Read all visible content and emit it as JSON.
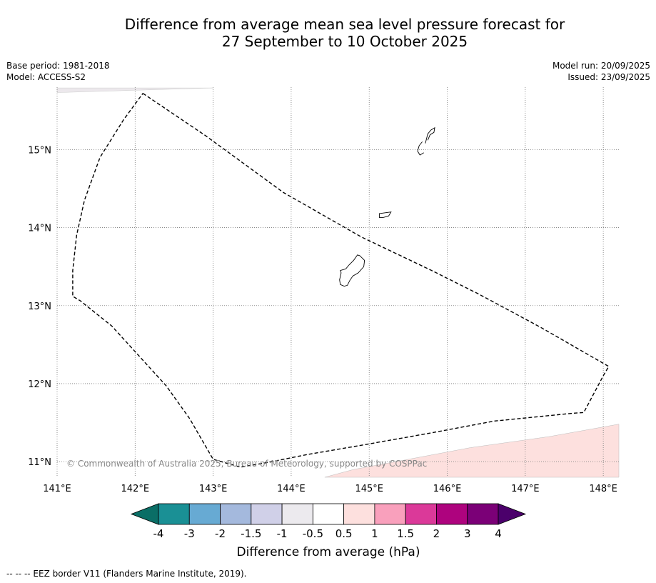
{
  "title": {
    "line1": "Difference from average mean sea level pressure forecast for",
    "line2": "27 September to 10 October 2025"
  },
  "meta": {
    "base_period": "Base period: 1981-2018",
    "model": "Model: ACCESS-S2",
    "model_run": "Model run: 20/09/2025",
    "issued": "Issued: 23/09/2025"
  },
  "map": {
    "longitude_range": [
      141.0,
      148.2
    ],
    "latitude_range": [
      10.8,
      15.8
    ],
    "lon_ticks": [
      141,
      142,
      143,
      144,
      145,
      146,
      147,
      148
    ],
    "lon_labels": [
      "141°E",
      "142°E",
      "143°E",
      "144°E",
      "145°E",
      "146°E",
      "147°E",
      "148°E"
    ],
    "lat_ticks": [
      15,
      14,
      13,
      12,
      11
    ],
    "lat_labels": [
      "15°N",
      "14°N",
      "13°N",
      "12°N",
      "11°N"
    ],
    "copyright": "© Commonwealth of Australia 2025, Bureau of Meteorology, supported by COSPPac",
    "eez_border": [
      [
        142.1,
        15.72
      ],
      [
        142.9,
        15.18
      ],
      [
        143.9,
        14.45
      ],
      [
        144.9,
        13.88
      ],
      [
        145.8,
        13.45
      ],
      [
        146.4,
        13.15
      ],
      [
        147.2,
        12.72
      ],
      [
        148.07,
        12.22
      ],
      [
        148.0,
        12.1
      ],
      [
        147.75,
        11.63
      ],
      [
        147.6,
        11.62
      ],
      [
        146.6,
        11.52
      ],
      [
        145.8,
        11.37
      ],
      [
        144.9,
        11.21
      ],
      [
        144.2,
        11.09
      ],
      [
        143.7,
        10.99
      ],
      [
        143.35,
        10.93
      ],
      [
        143.0,
        11.03
      ],
      [
        142.7,
        11.55
      ],
      [
        142.4,
        11.97
      ],
      [
        142.0,
        12.41
      ],
      [
        141.7,
        12.74
      ],
      [
        141.3,
        13.06
      ],
      [
        141.2,
        13.12
      ],
      [
        141.2,
        13.45
      ],
      [
        141.25,
        13.9
      ],
      [
        141.35,
        14.35
      ],
      [
        141.55,
        14.9
      ],
      [
        141.85,
        15.38
      ],
      [
        142.1,
        15.72
      ]
    ],
    "islands": [
      [
        [
          144.88,
          13.64
        ],
        [
          144.94,
          13.58
        ],
        [
          144.93,
          13.5
        ],
        [
          144.86,
          13.42
        ],
        [
          144.79,
          13.38
        ],
        [
          144.75,
          13.32
        ],
        [
          144.72,
          13.26
        ],
        [
          144.68,
          13.25
        ],
        [
          144.63,
          13.27
        ],
        [
          144.62,
          13.33
        ],
        [
          144.64,
          13.42
        ],
        [
          144.63,
          13.45
        ],
        [
          144.7,
          13.47
        ],
        [
          144.74,
          13.52
        ],
        [
          144.8,
          13.58
        ],
        [
          144.85,
          13.65
        ]
      ],
      [
        [
          145.13,
          14.18
        ],
        [
          145.28,
          14.2
        ],
        [
          145.25,
          14.15
        ],
        [
          145.18,
          14.13
        ],
        [
          145.13,
          14.13
        ]
      ],
      [
        [
          145.7,
          14.96
        ],
        [
          145.65,
          14.93
        ],
        [
          145.62,
          14.98
        ],
        [
          145.64,
          15.05
        ],
        [
          145.68,
          15.1
        ]
      ],
      [
        [
          145.72,
          15.08
        ],
        [
          145.75,
          15.2
        ],
        [
          145.79,
          15.25
        ],
        [
          145.84,
          15.28
        ],
        [
          145.83,
          15.22
        ],
        [
          145.78,
          15.19
        ],
        [
          145.75,
          15.12
        ]
      ]
    ],
    "neg_region": [
      [
        141.0,
        15.73
      ],
      [
        143.0,
        15.79
      ],
      [
        141.0,
        15.79
      ]
    ],
    "pos_region": [
      [
        144.43,
        10.8
      ],
      [
        144.8,
        10.9
      ],
      [
        145.5,
        11.03
      ],
      [
        146.3,
        11.18
      ],
      [
        147.3,
        11.32
      ],
      [
        148.2,
        11.48
      ],
      [
        148.2,
        10.8
      ]
    ],
    "shading_colors": {
      "neg": "#ece8ec",
      "pos": "#fde0de"
    }
  },
  "colorbar": {
    "levels": [
      "-4",
      "-3",
      "-2",
      "-1.5",
      "-1",
      "-0.5",
      "0.5",
      "1",
      "1.5",
      "2",
      "3",
      "4"
    ],
    "colors": [
      "#1a9095",
      "#67aad3",
      "#a4b9dd",
      "#d0d0e8",
      "#eceaee",
      "#ffffff",
      "#fde0de",
      "#f9a0bc",
      "#db3999",
      "#ae037e",
      "#7b0077"
    ],
    "under_color": "#0a6e66",
    "over_color": "#4b006b",
    "label": "Difference from average (hPa)"
  },
  "footer": {
    "eez_note": "--  --  -- EEZ border V11 (Flanders Marine Institute, 2019)."
  }
}
